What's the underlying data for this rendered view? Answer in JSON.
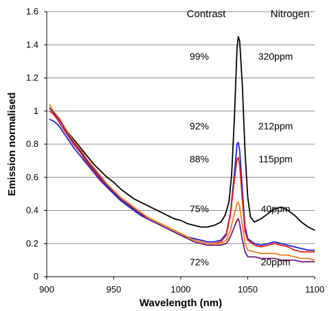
{
  "chart_data": {
    "type": "line",
    "title": "",
    "xlabel": "Wavelength (nm)",
    "ylabel": "Emission normalised",
    "xlim": [
      900,
      1100
    ],
    "ylim": [
      0,
      1.6
    ],
    "x_ticks": [
      900,
      950,
      1000,
      1050,
      1100
    ],
    "y_ticks": [
      0,
      0.2,
      0.4,
      0.6,
      0.8,
      1,
      1.2,
      1.4,
      1.6
    ],
    "grid": "horizontal",
    "legend": "none",
    "column_headers": [
      "Contrast",
      "Nitrogen"
    ],
    "annotations": [
      {
        "contrast": "99%",
        "nitrogen": "320ppm",
        "y": 1.33
      },
      {
        "contrast": "92%",
        "nitrogen": "212ppm",
        "y": 0.91
      },
      {
        "contrast": "88%",
        "nitrogen": "115ppm",
        "y": 0.71
      },
      {
        "contrast": "75%",
        "nitrogen": "40ppm",
        "y": 0.41
      },
      {
        "contrast": "72%",
        "nitrogen": "20ppm",
        "y": 0.09
      }
    ],
    "series": [
      {
        "color": "#000000",
        "points": [
          [
            902,
            1.02
          ],
          [
            905,
            0.99
          ],
          [
            908,
            0.97
          ],
          [
            910,
            0.94
          ],
          [
            915,
            0.88
          ],
          [
            920,
            0.83
          ],
          [
            925,
            0.78
          ],
          [
            930,
            0.73
          ],
          [
            935,
            0.68
          ],
          [
            940,
            0.64
          ],
          [
            945,
            0.6
          ],
          [
            950,
            0.57
          ],
          [
            955,
            0.53
          ],
          [
            960,
            0.5
          ],
          [
            965,
            0.47
          ],
          [
            970,
            0.45
          ],
          [
            975,
            0.43
          ],
          [
            980,
            0.41
          ],
          [
            985,
            0.39
          ],
          [
            990,
            0.37
          ],
          [
            995,
            0.35
          ],
          [
            1000,
            0.34
          ],
          [
            1005,
            0.32
          ],
          [
            1010,
            0.31
          ],
          [
            1015,
            0.3
          ],
          [
            1020,
            0.3
          ],
          [
            1025,
            0.31
          ],
          [
            1030,
            0.33
          ],
          [
            1033,
            0.37
          ],
          [
            1036,
            0.45
          ],
          [
            1038,
            0.62
          ],
          [
            1040,
            0.95
          ],
          [
            1042,
            1.38
          ],
          [
            1043,
            1.45
          ],
          [
            1044,
            1.42
          ],
          [
            1046,
            1.15
          ],
          [
            1048,
            0.75
          ],
          [
            1050,
            0.48
          ],
          [
            1052,
            0.36
          ],
          [
            1055,
            0.33
          ],
          [
            1060,
            0.35
          ],
          [
            1065,
            0.38
          ],
          [
            1070,
            0.41
          ],
          [
            1075,
            0.42
          ],
          [
            1080,
            0.4
          ],
          [
            1085,
            0.37
          ],
          [
            1090,
            0.33
          ],
          [
            1095,
            0.3
          ],
          [
            1100,
            0.28
          ]
        ]
      },
      {
        "color": "#1f1fd6",
        "points": [
          [
            902,
            0.95
          ],
          [
            905,
            0.94
          ],
          [
            908,
            0.92
          ],
          [
            910,
            0.9
          ],
          [
            915,
            0.84
          ],
          [
            920,
            0.78
          ],
          [
            925,
            0.73
          ],
          [
            930,
            0.68
          ],
          [
            935,
            0.63
          ],
          [
            940,
            0.58
          ],
          [
            945,
            0.54
          ],
          [
            950,
            0.5
          ],
          [
            955,
            0.46
          ],
          [
            960,
            0.43
          ],
          [
            965,
            0.4
          ],
          [
            970,
            0.37
          ],
          [
            975,
            0.35
          ],
          [
            980,
            0.33
          ],
          [
            985,
            0.31
          ],
          [
            990,
            0.29
          ],
          [
            995,
            0.27
          ],
          [
            1000,
            0.25
          ],
          [
            1005,
            0.24
          ],
          [
            1010,
            0.23
          ],
          [
            1015,
            0.22
          ],
          [
            1020,
            0.21
          ],
          [
            1025,
            0.21
          ],
          [
            1030,
            0.22
          ],
          [
            1034,
            0.26
          ],
          [
            1037,
            0.38
          ],
          [
            1040,
            0.62
          ],
          [
            1042,
            0.8
          ],
          [
            1043,
            0.81
          ],
          [
            1044,
            0.76
          ],
          [
            1046,
            0.52
          ],
          [
            1048,
            0.3
          ],
          [
            1050,
            0.23
          ],
          [
            1055,
            0.2
          ],
          [
            1060,
            0.19
          ],
          [
            1065,
            0.2
          ],
          [
            1070,
            0.21
          ],
          [
            1075,
            0.2
          ],
          [
            1080,
            0.19
          ],
          [
            1085,
            0.18
          ],
          [
            1090,
            0.17
          ],
          [
            1095,
            0.16
          ],
          [
            1100,
            0.16
          ]
        ]
      },
      {
        "color": "#e8221c",
        "points": [
          [
            902,
            1.0
          ],
          [
            905,
            0.98
          ],
          [
            908,
            0.95
          ],
          [
            910,
            0.92
          ],
          [
            915,
            0.86
          ],
          [
            920,
            0.8
          ],
          [
            925,
            0.75
          ],
          [
            930,
            0.69
          ],
          [
            935,
            0.64
          ],
          [
            940,
            0.59
          ],
          [
            945,
            0.55
          ],
          [
            950,
            0.51
          ],
          [
            955,
            0.47
          ],
          [
            960,
            0.44
          ],
          [
            965,
            0.41
          ],
          [
            970,
            0.38
          ],
          [
            975,
            0.36
          ],
          [
            980,
            0.34
          ],
          [
            985,
            0.32
          ],
          [
            990,
            0.3
          ],
          [
            995,
            0.28
          ],
          [
            1000,
            0.26
          ],
          [
            1005,
            0.24
          ],
          [
            1010,
            0.22
          ],
          [
            1015,
            0.21
          ],
          [
            1020,
            0.2
          ],
          [
            1025,
            0.2
          ],
          [
            1030,
            0.21
          ],
          [
            1034,
            0.25
          ],
          [
            1037,
            0.37
          ],
          [
            1040,
            0.58
          ],
          [
            1042,
            0.71
          ],
          [
            1043,
            0.72
          ],
          [
            1044,
            0.67
          ],
          [
            1046,
            0.46
          ],
          [
            1048,
            0.27
          ],
          [
            1050,
            0.22
          ],
          [
            1055,
            0.19
          ],
          [
            1060,
            0.18
          ],
          [
            1065,
            0.19
          ],
          [
            1070,
            0.2
          ],
          [
            1075,
            0.19
          ],
          [
            1080,
            0.18
          ],
          [
            1085,
            0.16
          ],
          [
            1090,
            0.15
          ],
          [
            1095,
            0.15
          ],
          [
            1100,
            0.15
          ]
        ]
      },
      {
        "color": "#f07f1e",
        "points": [
          [
            902,
            1.04
          ],
          [
            905,
            1.0
          ],
          [
            908,
            0.97
          ],
          [
            910,
            0.95
          ],
          [
            915,
            0.88
          ],
          [
            920,
            0.82
          ],
          [
            925,
            0.77
          ],
          [
            930,
            0.71
          ],
          [
            935,
            0.66
          ],
          [
            940,
            0.61
          ],
          [
            945,
            0.56
          ],
          [
            950,
            0.52
          ],
          [
            955,
            0.48
          ],
          [
            960,
            0.45
          ],
          [
            965,
            0.42
          ],
          [
            970,
            0.39
          ],
          [
            975,
            0.36
          ],
          [
            980,
            0.34
          ],
          [
            985,
            0.32
          ],
          [
            990,
            0.3
          ],
          [
            995,
            0.28
          ],
          [
            1000,
            0.26
          ],
          [
            1005,
            0.24
          ],
          [
            1010,
            0.22
          ],
          [
            1015,
            0.21
          ],
          [
            1020,
            0.2
          ],
          [
            1025,
            0.2
          ],
          [
            1030,
            0.2
          ],
          [
            1034,
            0.22
          ],
          [
            1037,
            0.28
          ],
          [
            1040,
            0.38
          ],
          [
            1042,
            0.44
          ],
          [
            1043,
            0.45
          ],
          [
            1044,
            0.42
          ],
          [
            1046,
            0.31
          ],
          [
            1048,
            0.2
          ],
          [
            1050,
            0.16
          ],
          [
            1055,
            0.15
          ],
          [
            1060,
            0.14
          ],
          [
            1065,
            0.14
          ],
          [
            1070,
            0.14
          ],
          [
            1075,
            0.13
          ],
          [
            1080,
            0.13
          ],
          [
            1085,
            0.12
          ],
          [
            1090,
            0.11
          ],
          [
            1095,
            0.11
          ],
          [
            1100,
            0.1
          ]
        ]
      },
      {
        "color": "#6b1f78",
        "points": [
          [
            902,
            1.02
          ],
          [
            905,
            0.99
          ],
          [
            908,
            0.96
          ],
          [
            910,
            0.94
          ],
          [
            915,
            0.87
          ],
          [
            920,
            0.81
          ],
          [
            925,
            0.76
          ],
          [
            930,
            0.7
          ],
          [
            935,
            0.65
          ],
          [
            940,
            0.6
          ],
          [
            945,
            0.55
          ],
          [
            950,
            0.51
          ],
          [
            955,
            0.47
          ],
          [
            960,
            0.44
          ],
          [
            965,
            0.41
          ],
          [
            970,
            0.38
          ],
          [
            975,
            0.35
          ],
          [
            980,
            0.33
          ],
          [
            985,
            0.31
          ],
          [
            990,
            0.29
          ],
          [
            995,
            0.27
          ],
          [
            1000,
            0.25
          ],
          [
            1005,
            0.23
          ],
          [
            1010,
            0.21
          ],
          [
            1015,
            0.2
          ],
          [
            1020,
            0.19
          ],
          [
            1025,
            0.19
          ],
          [
            1030,
            0.19
          ],
          [
            1034,
            0.2
          ],
          [
            1037,
            0.24
          ],
          [
            1040,
            0.3
          ],
          [
            1042,
            0.34
          ],
          [
            1043,
            0.35
          ],
          [
            1044,
            0.32
          ],
          [
            1046,
            0.22
          ],
          [
            1048,
            0.15
          ],
          [
            1050,
            0.12
          ],
          [
            1055,
            0.12
          ],
          [
            1060,
            0.11
          ],
          [
            1065,
            0.11
          ],
          [
            1070,
            0.11
          ],
          [
            1075,
            0.1
          ],
          [
            1080,
            0.1
          ],
          [
            1085,
            0.1
          ],
          [
            1090,
            0.09
          ],
          [
            1095,
            0.09
          ],
          [
            1100,
            0.09
          ]
        ]
      }
    ]
  }
}
